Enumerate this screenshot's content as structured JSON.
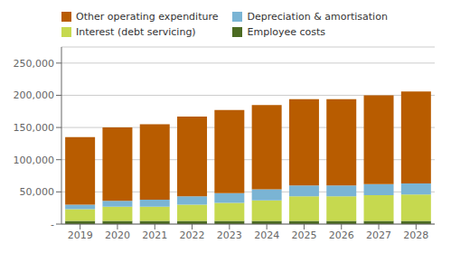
{
  "chart_data": {
    "type": "bar",
    "stacked": true,
    "grid": true,
    "legend": "upper left",
    "categories": [
      "2019",
      "2020",
      "2021",
      "2022",
      "2023",
      "2024",
      "2025",
      "2026",
      "2027",
      "2028"
    ],
    "series": [
      {
        "name": "Employee costs",
        "color": "#4c6b22",
        "values": [
          5000,
          5000,
          5000,
          5000,
          5000,
          5000,
          5000,
          5000,
          5000,
          5000
        ]
      },
      {
        "name": "Interest (debt servicing)",
        "color": "#c6d94f",
        "values": [
          18000,
          22000,
          22000,
          25000,
          28000,
          32000,
          38000,
          38000,
          40000,
          41000
        ]
      },
      {
        "name": "Depreciation & amortisation",
        "color": "#7ab4d4",
        "values": [
          7000,
          9000,
          11000,
          13000,
          15000,
          17000,
          17000,
          17000,
          17000,
          17000
        ]
      },
      {
        "name": "Other operating expenditure",
        "color": "#b85c00",
        "values": [
          105000,
          114000,
          117000,
          124000,
          129000,
          131000,
          134000,
          134000,
          138000,
          143000
        ]
      }
    ],
    "ylim": [
      0,
      275000
    ],
    "yticks": [
      {
        "value": 0,
        "label": "-"
      },
      {
        "value": 50000,
        "label": "50,000"
      },
      {
        "value": 100000,
        "label": "100,000"
      },
      {
        "value": 150000,
        "label": "150,000"
      },
      {
        "value": 200000,
        "label": "200,000"
      },
      {
        "value": 250000,
        "label": "250,000"
      }
    ]
  }
}
